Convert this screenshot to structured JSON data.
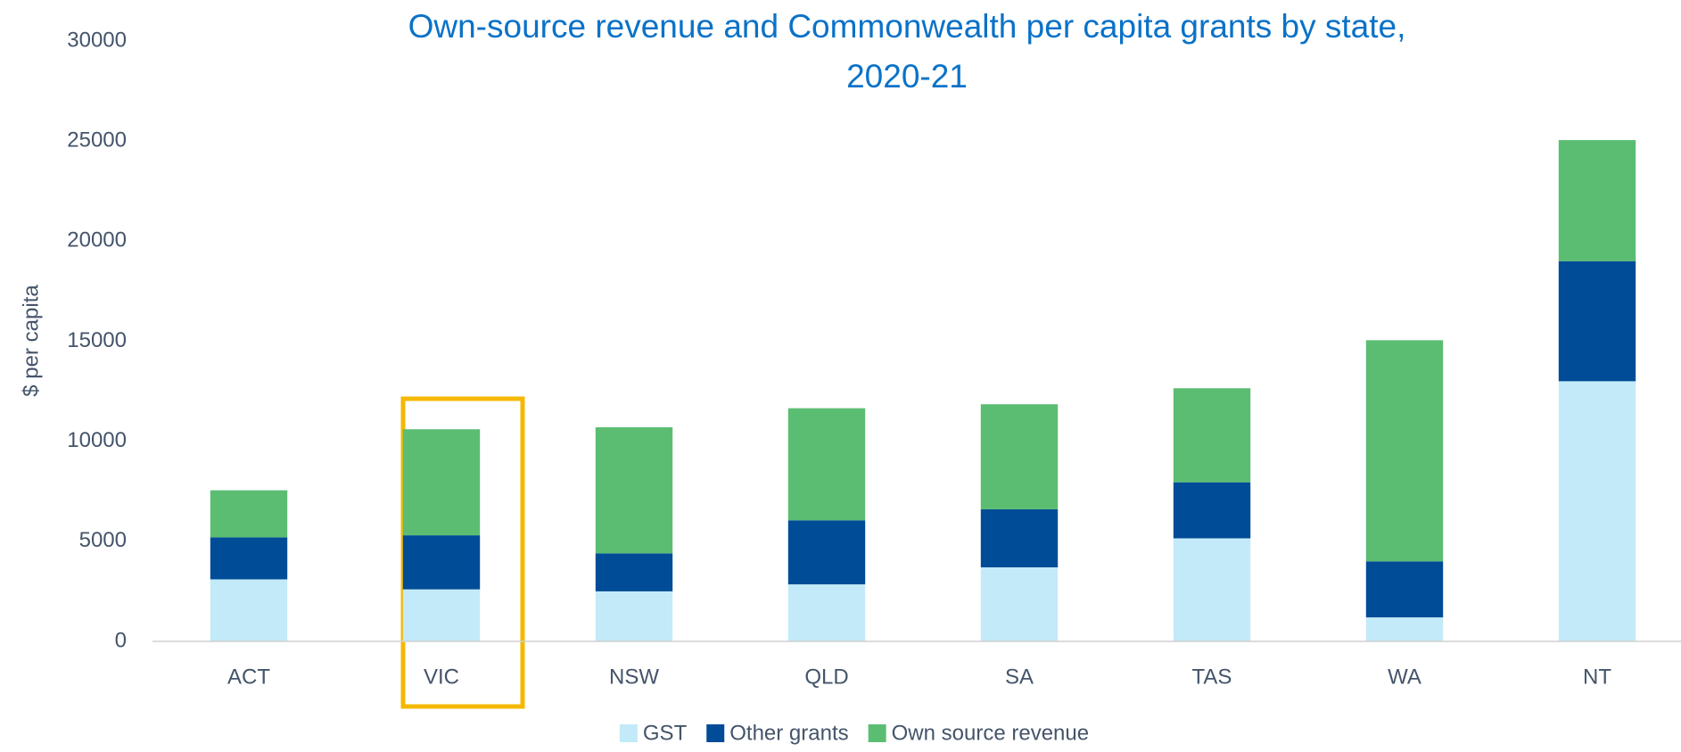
{
  "chart_data": {
    "type": "stacked_bar",
    "title": "Own-source revenue and Commonwealth per capita grants by state, 2020-21",
    "y_label": "$ per capita",
    "categories": [
      "ACT",
      "VIC",
      "NSW",
      "QLD",
      "SA",
      "TAS",
      "WA",
      "NT"
    ],
    "series": [
      {
        "name": "GST",
        "color": "#c3eaf8",
        "values": [
          3100,
          2600,
          2500,
          2850,
          3700,
          5150,
          1200,
          13000
        ]
      },
      {
        "name": "Other grants",
        "color": "#004c97",
        "values": [
          2100,
          2700,
          1900,
          3200,
          2900,
          2800,
          2800,
          6000
        ]
      },
      {
        "name": "Own source revenue",
        "color": "#5bbd72",
        "values": [
          2350,
          5300,
          6300,
          5600,
          5250,
          4700,
          11050,
          6050
        ]
      }
    ],
    "ylim": [
      0,
      30000
    ],
    "yticks": [
      0,
      5000,
      10000,
      15000,
      20000,
      25000,
      30000
    ]
  }
}
